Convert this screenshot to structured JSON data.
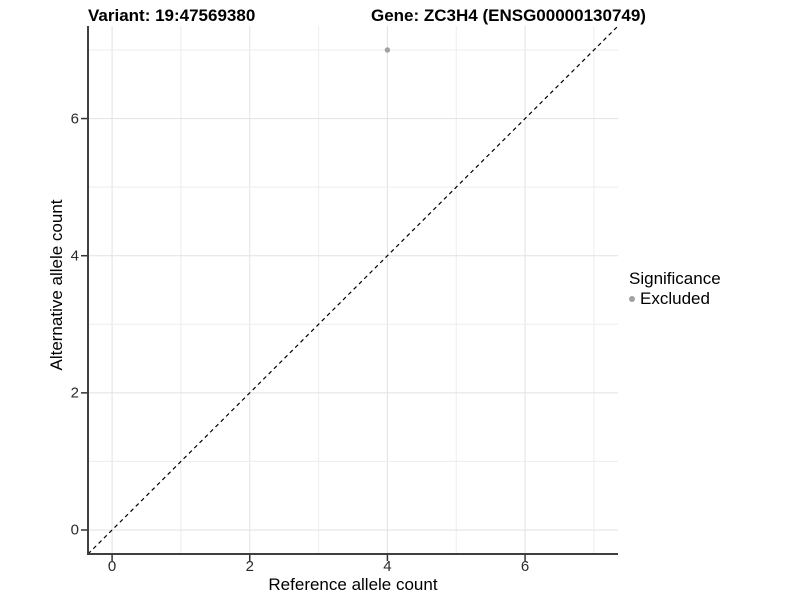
{
  "chart_data": {
    "type": "scatter",
    "titles": {
      "left": "Variant: 19:47569380",
      "right": "Gene: ZC3H4 (ENSG00000130749)"
    },
    "xlabel": "Reference allele count",
    "ylabel": "Alternative allele count",
    "xlim": [
      -0.35,
      7.35
    ],
    "ylim": [
      -0.35,
      7.35
    ],
    "x_ticks": [
      0,
      2,
      4,
      6
    ],
    "y_ticks": [
      0,
      2,
      4,
      6
    ],
    "grid": {
      "show": true,
      "interval": 1,
      "major_color": "#e2e2e2",
      "minor_color": "#ededed"
    },
    "reference_line": {
      "type": "identity",
      "style": "dashed",
      "color": "#000000",
      "from": [
        -0.35,
        -0.35
      ],
      "to": [
        7.35,
        7.35
      ]
    },
    "series": [
      {
        "name": "Excluded",
        "color": "#a1a1a1",
        "points": [
          {
            "x": 4,
            "y": 7
          }
        ]
      }
    ],
    "legend": {
      "title": "Significance",
      "position": "right",
      "entries": [
        {
          "label": "Excluded",
          "color": "#a1a1a1",
          "marker": "circle"
        }
      ]
    }
  },
  "colors": {
    "background": "#ffffff",
    "axis_line": "#3f3f3f",
    "tick_mark": "#333333",
    "text": "#000000"
  }
}
